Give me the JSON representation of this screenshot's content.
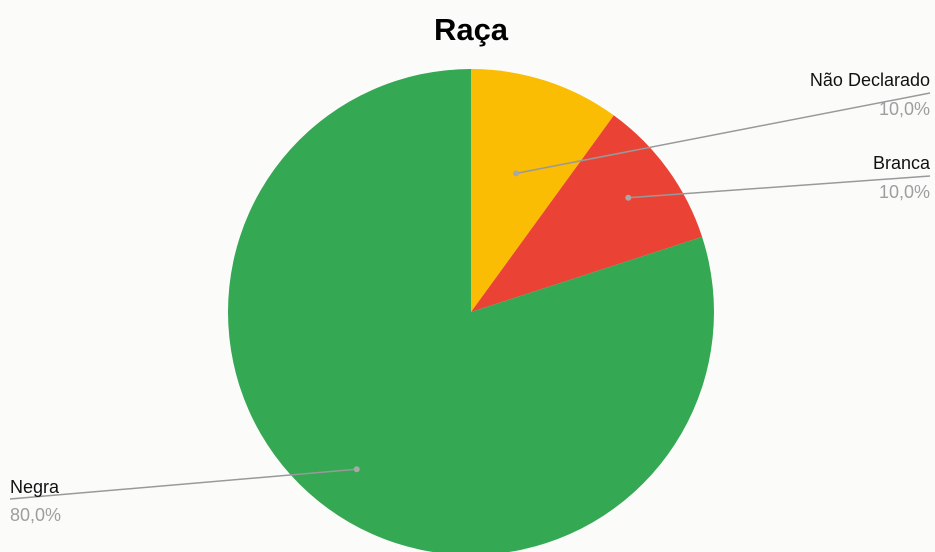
{
  "chart_data": {
    "type": "pie",
    "title": "Raça",
    "slices": [
      {
        "label": "Não Declarado",
        "value": 10.0,
        "value_label": "10,0%",
        "color": "#fbbc04"
      },
      {
        "label": "Branca",
        "value": 10.0,
        "value_label": "10,0%",
        "color": "#ea4335"
      },
      {
        "label": "Negra",
        "value": 80.0,
        "value_label": "80,0%",
        "color": "#34a853"
      }
    ],
    "start_angle": "12 o'clock",
    "direction": "clockwise",
    "legend": "none",
    "label_style": "leader lines",
    "leader_line_color": "#999999"
  }
}
